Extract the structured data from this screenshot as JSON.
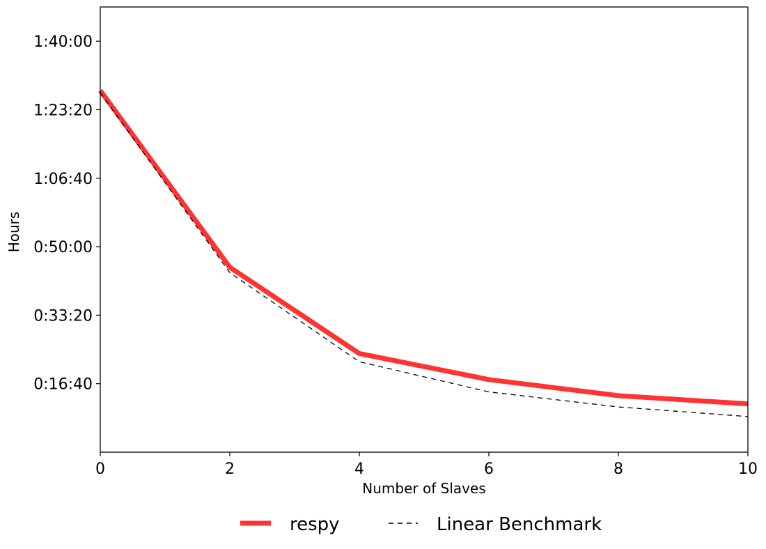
{
  "chart_data": {
    "type": "line",
    "title": "",
    "xlabel": "Number of Slaves",
    "ylabel": "Hours",
    "xlim": [
      0,
      10
    ],
    "ylim": [
      0,
      6500
    ],
    "x_ticks": [
      0,
      2,
      4,
      6,
      8,
      10
    ],
    "x_tick_labels": [
      "0",
      "2",
      "4",
      "6",
      "8",
      "10"
    ],
    "y_ticks": [
      1000,
      2000,
      3000,
      4000,
      5000,
      6000
    ],
    "y_tick_labels": [
      "0:16:40",
      "0:33:20",
      "0:50:00",
      "1:06:40",
      "1:23:20",
      "1:40:00"
    ],
    "y_unit": "seconds",
    "grid": false,
    "legend_position": "bottom-center-outside",
    "series": [
      {
        "name": "respy",
        "color": "#ff3333",
        "style": "solid-thick",
        "x": [
          0,
          2,
          4,
          6,
          8,
          10
        ],
        "y": [
          5280,
          2700,
          1440,
          1060,
          825,
          705
        ]
      },
      {
        "name": "Linear Benchmark",
        "color": "#000000",
        "style": "dashed-thin",
        "x": [
          0,
          2,
          4,
          6,
          8,
          10
        ],
        "y": [
          5250,
          2620,
          1320,
          880,
          660,
          520
        ]
      }
    ]
  }
}
